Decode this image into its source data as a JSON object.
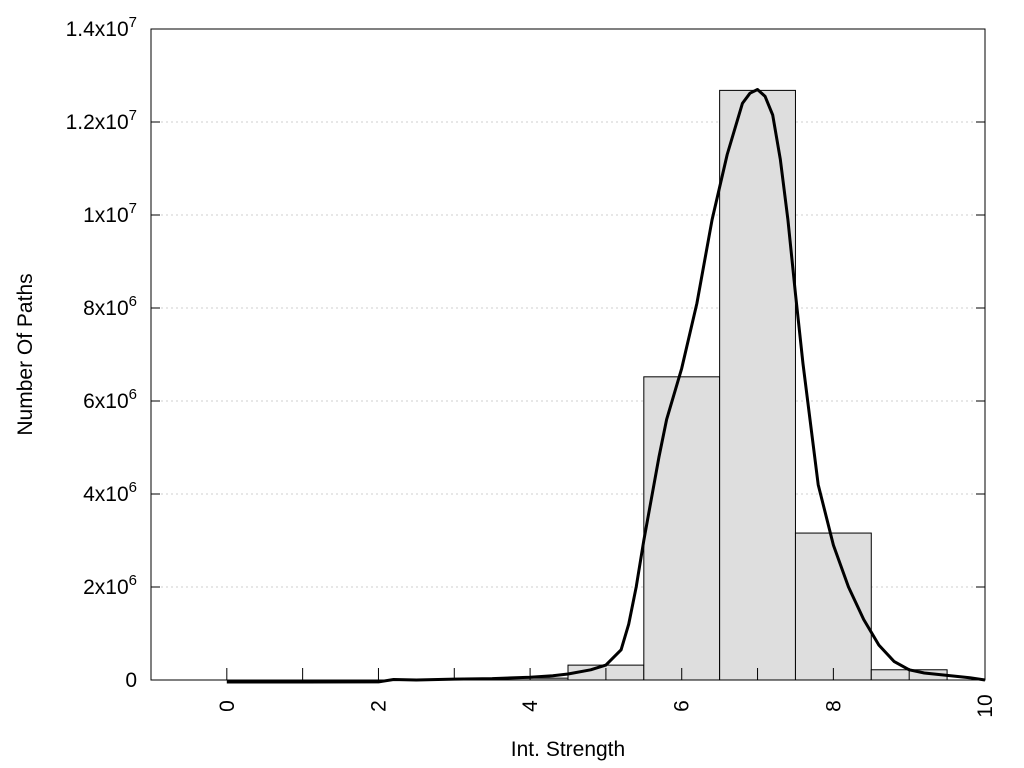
{
  "chart_data": {
    "type": "bar",
    "xlabel": "Int. Strength",
    "ylabel": "Number Of Paths",
    "xlim": [
      -1,
      10
    ],
    "ylim": [
      0,
      14000000
    ],
    "grid": true,
    "x_ticks": [
      {
        "value": 0,
        "label": "0"
      },
      {
        "value": 2,
        "label": "2"
      },
      {
        "value": 4,
        "label": "4"
      },
      {
        "value": 6,
        "label": "6"
      },
      {
        "value": 8,
        "label": "8"
      },
      {
        "value": 10,
        "label": "10"
      }
    ],
    "y_ticks": [
      {
        "value": 0,
        "base": "0",
        "exp": ""
      },
      {
        "value": 2000000,
        "base": "2x10",
        "exp": "6"
      },
      {
        "value": 4000000,
        "base": "4x10",
        "exp": "6"
      },
      {
        "value": 6000000,
        "base": "6x10",
        "exp": "6"
      },
      {
        "value": 8000000,
        "base": "8x10",
        "exp": "6"
      },
      {
        "value": 10000000,
        "base": "1x10",
        "exp": "7"
      },
      {
        "value": 12000000,
        "base": "1.2x10",
        "exp": "7"
      },
      {
        "value": 14000000,
        "base": "1.4x10",
        "exp": "7"
      }
    ],
    "bar_width": 1,
    "bars": [
      {
        "x": 0,
        "value": 0
      },
      {
        "x": 1,
        "value": 0
      },
      {
        "x": 2,
        "value": 0
      },
      {
        "x": 3,
        "value": 10000
      },
      {
        "x": 4,
        "value": 40000
      },
      {
        "x": 5,
        "value": 320000
      },
      {
        "x": 6,
        "value": 6520000
      },
      {
        "x": 7,
        "value": 12680000
      },
      {
        "x": 8,
        "value": 3160000
      },
      {
        "x": 9,
        "value": 220000
      }
    ],
    "curve": {
      "x": [
        0,
        1,
        2,
        2.2,
        2.5,
        3,
        3.5,
        4,
        4.3,
        4.5,
        4.8,
        5,
        5.2,
        5.3,
        5.4,
        5.5,
        5.6,
        5.7,
        5.8,
        6,
        6.2,
        6.4,
        6.6,
        6.8,
        6.9,
        7,
        7.1,
        7.2,
        7.3,
        7.4,
        7.5,
        7.6,
        7.8,
        8,
        8.2,
        8.4,
        8.6,
        8.8,
        9,
        9.2,
        9.5,
        9.8,
        10
      ],
      "y": [
        -50000,
        -50000,
        -40000,
        10000,
        0,
        20000,
        30000,
        60000,
        90000,
        130000,
        220000,
        320000,
        650000,
        1200000,
        2000000,
        3000000,
        3900000,
        4800000,
        5600000,
        6700000,
        8100000,
        9900000,
        11300000,
        12400000,
        12620000,
        12700000,
        12550000,
        12150000,
        11200000,
        9900000,
        8300000,
        6800000,
        4200000,
        2900000,
        2000000,
        1300000,
        750000,
        400000,
        220000,
        150000,
        100000,
        50000,
        0
      ]
    }
  }
}
